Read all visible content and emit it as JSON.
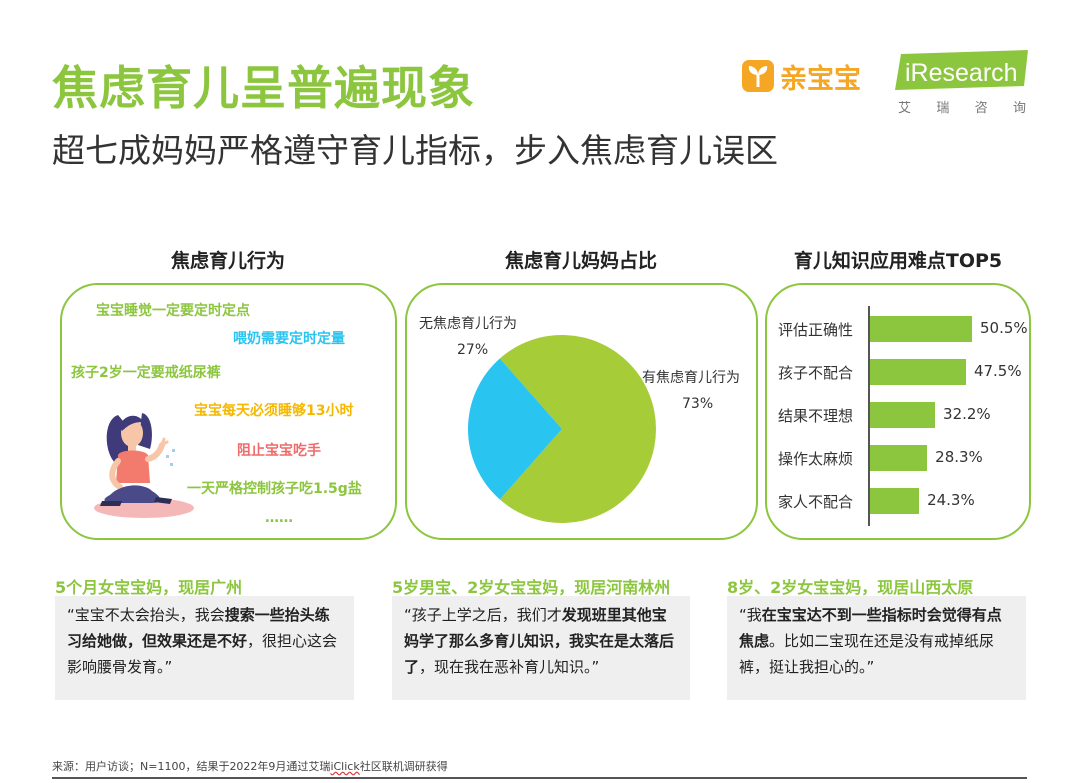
{
  "header": {
    "title": "焦虑育儿呈普遍现象",
    "subtitle": "超七成妈妈严格遵守育儿指标，步入焦虑育儿误区",
    "logo_qbb_text": "亲宝宝",
    "logo_ir_text": "iResearch",
    "logo_ir_sub": [
      "艾",
      "瑞",
      "咨",
      "询"
    ]
  },
  "sections": {
    "behavior_title": "焦虑育儿行为",
    "pie_title": "焦虑育儿妈妈占比",
    "bar_title": "育儿知识应用难点TOP5"
  },
  "behaviors": [
    {
      "text": "宝宝睡觉一定要定时定点",
      "color": "#8cc63f"
    },
    {
      "text": "喂奶需要定时定量",
      "color": "#29c4f0"
    },
    {
      "text": "孩子2岁一定要戒纸尿裤",
      "color": "#8cc63f"
    },
    {
      "text": "宝宝每天必须睡够13小时",
      "color": "#f5b800"
    },
    {
      "text": "阻止宝宝吃手",
      "color": "#f06b6b"
    },
    {
      "text": "一天严格控制孩子吃1.5g盐",
      "color": "#8cc63f"
    },
    {
      "text": "……",
      "color": "#8cc63f"
    }
  ],
  "chart_data": [
    {
      "type": "pie",
      "title": "焦虑育儿妈妈占比",
      "slices": [
        {
          "label": "有焦虑育儿行为",
          "value": 73,
          "display": "73%",
          "color": "#a6cc38"
        },
        {
          "label": "无焦虑育儿行为",
          "value": 27,
          "display": "27%",
          "color": "#29c4f0"
        }
      ]
    },
    {
      "type": "bar",
      "orientation": "horizontal",
      "title": "育儿知识应用难点TOP5",
      "categories": [
        "评估正确性",
        "孩子不配合",
        "结果不理想",
        "操作太麻烦",
        "家人不配合"
      ],
      "values": [
        50.5,
        47.5,
        32.2,
        28.3,
        24.3
      ],
      "value_labels": [
        "50.5%",
        "47.5%",
        "32.2%",
        "28.3%",
        "24.3%"
      ],
      "color": "#8cc63f"
    }
  ],
  "cases": [
    {
      "heading": "5个月女宝宝妈，现居广州",
      "quote": [
        {
          "t": "“宝宝不太会抬头，我会",
          "b": false
        },
        {
          "t": "搜索一些抬头练习给她做，但效果还是不好",
          "b": true
        },
        {
          "t": "，很担心这会影响腰骨发育。”",
          "b": false
        }
      ]
    },
    {
      "heading": "5岁男宝、2岁女宝宝妈，现居河南林州",
      "quote": [
        {
          "t": "“孩子上学之后，我们才",
          "b": false
        },
        {
          "t": "发现班里其他宝妈学了那么多育儿知识，我实在是太落后了",
          "b": true
        },
        {
          "t": "，现在我在恶补育儿知识。”",
          "b": false
        }
      ]
    },
    {
      "heading": "8岁、2岁女宝宝妈，现居山西太原",
      "quote": [
        {
          "t": "“我",
          "b": false
        },
        {
          "t": "在宝宝达不到一些指标时会觉得有点焦虑",
          "b": true
        },
        {
          "t": "。比如二宝现在还是没有戒掉纸尿裤，挺让我担心的。”",
          "b": false
        }
      ]
    }
  ],
  "footer": {
    "source_prefix": "来源：用户访谈；N=1100，结果于2022年9月通过艾瑞",
    "source_brand": "iClick",
    "source_suffix": "社区联机调研获得"
  }
}
